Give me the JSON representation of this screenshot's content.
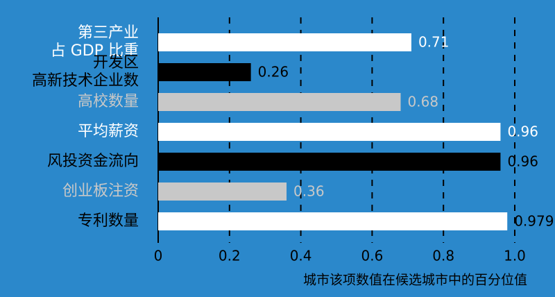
{
  "chart_data": {
    "type": "barh",
    "categories": [
      "第三产业\n占 GDP 比重",
      "开发区\n高新技术企业数",
      "高校数量",
      "平均薪资",
      "风投资金流向",
      "创业板注资",
      "专利数量"
    ],
    "values": [
      0.71,
      0.26,
      0.68,
      0.96,
      0.96,
      0.36,
      0.979
    ],
    "colors": [
      "#ffffff",
      "#000000",
      "#c8c8c8",
      "#ffffff",
      "#000000",
      "#c8c8c8",
      "#ffffff"
    ],
    "label_colors": [
      "#ffffff",
      "#000000",
      "#c8c8c8",
      "#ffffff",
      "#000000",
      "#c8c8c8",
      "#000000"
    ],
    "xlim": [
      0,
      1.0
    ],
    "xticks": [
      0,
      0.2,
      0.4,
      0.6,
      0.8,
      {
        "value": 1.0,
        "label": "1.0"
      }
    ],
    "xlabel": "城市该项数值在候选城市中的百分位值",
    "grid": true
  }
}
